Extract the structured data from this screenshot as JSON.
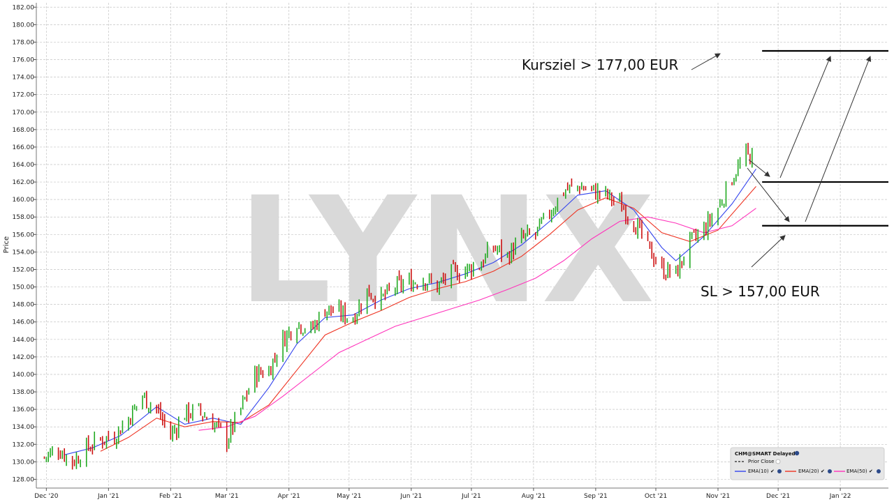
{
  "chart_data": {
    "type": "ohlc",
    "ylabel": "Price",
    "watermark": "LYNX",
    "ylim": [
      127,
      182.5
    ],
    "y_ticks": [
      "182.00",
      "180.00",
      "178.00",
      "176.00",
      "174.00",
      "172.00",
      "170.00",
      "168.00",
      "166.00",
      "164.00",
      "162.00",
      "160.00",
      "158.00",
      "156.00",
      "154.00",
      "152.00",
      "150.00",
      "148.00",
      "146.00",
      "144.00",
      "142.00",
      "140.00",
      "138.00",
      "136.00",
      "134.00",
      "132.00",
      "130.00",
      "128.00"
    ],
    "x_ticks": [
      "Dec '20",
      "Jan '21",
      "Feb '21",
      "Mar '21",
      "Apr '21",
      "May '21",
      "Jun '21",
      "Jul '21",
      "Aug '21",
      "Sep '21",
      "Oct '21",
      "Nov '21",
      "Dec '21",
      "Jan '22"
    ],
    "x_tick_dates": [
      "2020-12-01",
      "2021-01-01",
      "2021-02-01",
      "2021-03-01",
      "2021-04-01",
      "2021-05-01",
      "2021-06-01",
      "2021-07-01",
      "2021-08-01",
      "2021-09-01",
      "2021-10-01",
      "2021-11-01",
      "2021-12-01",
      "2022-01-01"
    ],
    "xlim": [
      "2020-11-26",
      "2022-01-25"
    ],
    "price_path": [
      [
        "2020-11-30",
        130.5
      ],
      [
        "2020-12-07",
        131.5
      ],
      [
        "2020-12-14",
        130.0
      ],
      [
        "2020-12-21",
        131.5
      ],
      [
        "2020-12-28",
        132.5
      ],
      [
        "2021-01-04",
        133.0
      ],
      [
        "2021-01-11",
        135.0
      ],
      [
        "2021-01-18",
        137.5
      ],
      [
        "2021-01-25",
        136.0
      ],
      [
        "2021-02-01",
        133.0
      ],
      [
        "2021-02-08",
        135.5
      ],
      [
        "2021-02-15",
        135.8
      ],
      [
        "2021-02-22",
        134.5
      ],
      [
        "2021-03-01",
        132.5
      ],
      [
        "2021-03-08",
        136.0
      ],
      [
        "2021-03-15",
        140.0
      ],
      [
        "2021-03-22",
        140.5
      ],
      [
        "2021-03-29",
        144.0
      ],
      [
        "2021-04-05",
        146.0
      ],
      [
        "2021-04-12",
        145.0
      ],
      [
        "2021-04-19",
        147.5
      ],
      [
        "2021-04-26",
        147.0
      ],
      [
        "2021-05-03",
        146.5
      ],
      [
        "2021-05-10",
        149.5
      ],
      [
        "2021-05-17",
        148.5
      ],
      [
        "2021-05-24",
        150.0
      ],
      [
        "2021-05-31",
        150.5
      ],
      [
        "2021-06-07",
        151.0
      ],
      [
        "2021-06-14",
        150.0
      ],
      [
        "2021-06-21",
        151.5
      ],
      [
        "2021-06-28",
        152.0
      ],
      [
        "2021-07-05",
        152.5
      ],
      [
        "2021-07-12",
        154.5
      ],
      [
        "2021-07-19",
        153.5
      ],
      [
        "2021-07-26",
        155.5
      ],
      [
        "2021-08-02",
        156.0
      ],
      [
        "2021-08-09",
        158.5
      ],
      [
        "2021-08-16",
        161.0
      ],
      [
        "2021-08-23",
        161.5
      ],
      [
        "2021-08-30",
        161.0
      ],
      [
        "2021-09-06",
        160.5
      ],
      [
        "2021-09-13",
        159.5
      ],
      [
        "2021-09-20",
        157.5
      ],
      [
        "2021-09-27",
        154.5
      ],
      [
        "2021-10-04",
        152.0
      ],
      [
        "2021-10-11",
        151.5
      ],
      [
        "2021-10-18",
        155.0
      ],
      [
        "2021-10-25",
        156.5
      ],
      [
        "2021-11-01",
        159.0
      ],
      [
        "2021-11-08",
        162.5
      ],
      [
        "2021-11-15",
        165.0
      ]
    ],
    "series": [
      {
        "name": "EMA(10)",
        "color": "#3344ee",
        "points": [
          [
            "2020-12-10",
            130.8
          ],
          [
            "2020-12-24",
            131.6
          ],
          [
            "2021-01-07",
            133.0
          ],
          [
            "2021-01-25",
            136.3
          ],
          [
            "2021-02-08",
            134.3
          ],
          [
            "2021-02-22",
            135.0
          ],
          [
            "2021-03-08",
            134.3
          ],
          [
            "2021-03-22",
            138.5
          ],
          [
            "2021-04-05",
            143.5
          ],
          [
            "2021-04-19",
            146.5
          ],
          [
            "2021-05-03",
            146.8
          ],
          [
            "2021-05-17",
            148.5
          ],
          [
            "2021-05-31",
            149.8
          ],
          [
            "2021-06-14",
            150.5
          ],
          [
            "2021-06-28",
            151.5
          ],
          [
            "2021-07-12",
            152.8
          ],
          [
            "2021-07-26",
            154.8
          ],
          [
            "2021-08-09",
            157.5
          ],
          [
            "2021-08-23",
            160.5
          ],
          [
            "2021-09-06",
            161.0
          ],
          [
            "2021-09-20",
            158.8
          ],
          [
            "2021-10-04",
            154.5
          ],
          [
            "2021-10-11",
            153.0
          ],
          [
            "2021-10-25",
            155.8
          ],
          [
            "2021-11-08",
            159.5
          ],
          [
            "2021-11-20",
            163.5
          ]
        ]
      },
      {
        "name": "EMA(20)",
        "color": "#ee3322",
        "points": [
          [
            "2020-12-28",
            131.2
          ],
          [
            "2021-01-11",
            132.8
          ],
          [
            "2021-01-25",
            135.0
          ],
          [
            "2021-02-08",
            134.0
          ],
          [
            "2021-02-22",
            134.6
          ],
          [
            "2021-03-08",
            134.5
          ],
          [
            "2021-03-22",
            136.5
          ],
          [
            "2021-04-05",
            140.5
          ],
          [
            "2021-04-19",
            144.5
          ],
          [
            "2021-05-03",
            146.0
          ],
          [
            "2021-05-17",
            147.3
          ],
          [
            "2021-05-31",
            148.8
          ],
          [
            "2021-06-14",
            149.8
          ],
          [
            "2021-06-28",
            150.6
          ],
          [
            "2021-07-12",
            151.8
          ],
          [
            "2021-07-26",
            153.5
          ],
          [
            "2021-08-09",
            156.0
          ],
          [
            "2021-08-23",
            158.8
          ],
          [
            "2021-09-06",
            160.2
          ],
          [
            "2021-09-20",
            159.0
          ],
          [
            "2021-10-04",
            156.2
          ],
          [
            "2021-10-18",
            155.2
          ],
          [
            "2021-11-01",
            156.5
          ],
          [
            "2021-11-20",
            161.5
          ]
        ]
      },
      {
        "name": "EMA(50)",
        "color": "#ff33bb",
        "points": [
          [
            "2021-02-15",
            133.6
          ],
          [
            "2021-03-01",
            134.0
          ],
          [
            "2021-03-15",
            135.2
          ],
          [
            "2021-03-29",
            137.5
          ],
          [
            "2021-04-12",
            140.0
          ],
          [
            "2021-04-26",
            142.5
          ],
          [
            "2021-05-10",
            144.0
          ],
          [
            "2021-05-24",
            145.5
          ],
          [
            "2021-06-07",
            146.5
          ],
          [
            "2021-06-21",
            147.5
          ],
          [
            "2021-07-05",
            148.5
          ],
          [
            "2021-07-19",
            149.7
          ],
          [
            "2021-08-02",
            151.0
          ],
          [
            "2021-08-16",
            153.0
          ],
          [
            "2021-08-30",
            155.5
          ],
          [
            "2021-09-13",
            157.5
          ],
          [
            "2021-09-27",
            158.0
          ],
          [
            "2021-10-11",
            157.3
          ],
          [
            "2021-10-25",
            156.2
          ],
          [
            "2021-11-08",
            157.0
          ],
          [
            "2021-11-20",
            159.0
          ]
        ]
      }
    ],
    "levels": [
      {
        "name": "target",
        "value": 177.0,
        "from": "2021-11-23",
        "to": "2022-01-25"
      },
      {
        "name": "mid",
        "value": 162.0,
        "from": "2021-11-23",
        "to": "2022-01-25"
      },
      {
        "name": "stop",
        "value": 157.0,
        "from": "2021-11-23",
        "to": "2022-01-25"
      }
    ],
    "annotations": {
      "target_label": "Kursziel > 177,00 EUR",
      "stop_label": "SL > 157,00 EUR"
    },
    "legend": {
      "placement": "bottom-right",
      "title": "CHM@SMART Delayed",
      "prior_close": "Prior Close",
      "entries": [
        "EMA(10)",
        "EMA(20)",
        "EMA(50)"
      ]
    },
    "grid": true
  }
}
